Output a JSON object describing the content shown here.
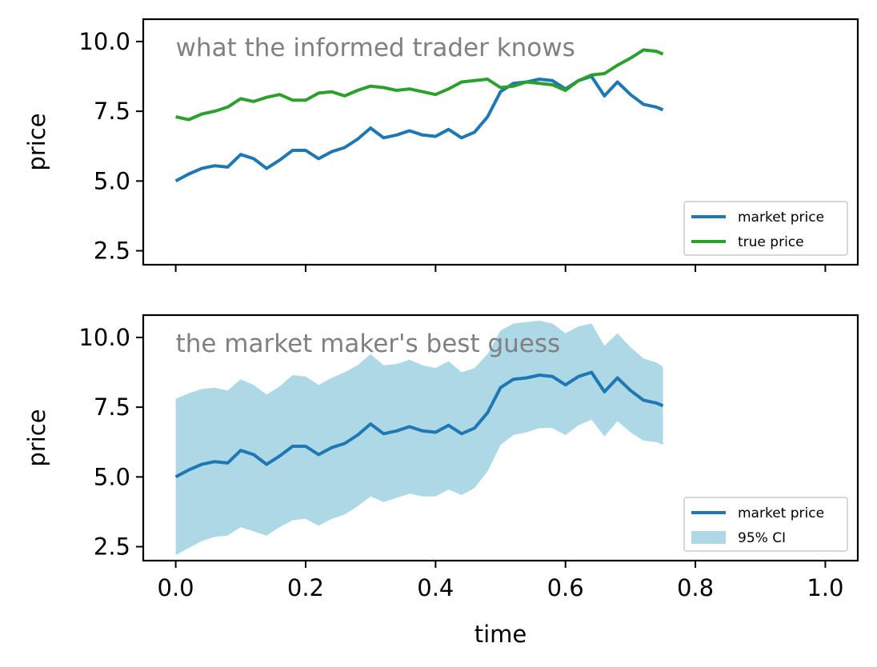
{
  "chart_data": [
    {
      "type": "line",
      "title": "what the informed trader knows",
      "xlabel": "",
      "ylabel": "price",
      "xlim": [
        -0.05,
        1.05
      ],
      "ylim": [
        2.0,
        10.8
      ],
      "x_ticks": [
        "0.0",
        "0.2",
        "0.4",
        "0.6",
        "0.8",
        "1.0"
      ],
      "x_tick_labels_visible": false,
      "y_ticks": [
        "2.5",
        "5.0",
        "7.5",
        "10.0"
      ],
      "legend_position": "lower right",
      "grid": false,
      "series": [
        {
          "name": "market price",
          "color": "#1f77b4",
          "x": [
            0.0,
            0.02,
            0.04,
            0.06,
            0.08,
            0.1,
            0.12,
            0.14,
            0.16,
            0.18,
            0.2,
            0.22,
            0.24,
            0.26,
            0.28,
            0.3,
            0.32,
            0.34,
            0.36,
            0.38,
            0.4,
            0.42,
            0.44,
            0.46,
            0.48,
            0.5,
            0.52,
            0.54,
            0.56,
            0.58,
            0.6,
            0.62,
            0.64,
            0.66,
            0.68,
            0.7,
            0.72,
            0.74,
            0.75
          ],
          "y": [
            5.0,
            5.25,
            5.45,
            5.55,
            5.5,
            5.95,
            5.8,
            5.45,
            5.75,
            6.1,
            6.1,
            5.8,
            6.05,
            6.2,
            6.5,
            6.9,
            6.55,
            6.65,
            6.8,
            6.65,
            6.6,
            6.85,
            6.55,
            6.75,
            7.3,
            8.2,
            8.5,
            8.55,
            8.65,
            8.6,
            8.3,
            8.6,
            8.75,
            8.05,
            8.55,
            8.1,
            7.75,
            7.65,
            7.55
          ]
        },
        {
          "name": "true price",
          "color": "#2ca02c",
          "x": [
            0.0,
            0.02,
            0.04,
            0.06,
            0.08,
            0.1,
            0.12,
            0.14,
            0.16,
            0.18,
            0.2,
            0.22,
            0.24,
            0.26,
            0.28,
            0.3,
            0.32,
            0.34,
            0.36,
            0.38,
            0.4,
            0.42,
            0.44,
            0.46,
            0.48,
            0.5,
            0.52,
            0.54,
            0.56,
            0.58,
            0.6,
            0.62,
            0.64,
            0.66,
            0.68,
            0.7,
            0.72,
            0.74,
            0.75
          ],
          "y": [
            7.3,
            7.2,
            7.4,
            7.5,
            7.65,
            7.95,
            7.85,
            8.0,
            8.1,
            7.9,
            7.9,
            8.15,
            8.2,
            8.05,
            8.25,
            8.4,
            8.35,
            8.25,
            8.3,
            8.2,
            8.1,
            8.3,
            8.55,
            8.6,
            8.65,
            8.35,
            8.4,
            8.55,
            8.5,
            8.45,
            8.25,
            8.6,
            8.8,
            8.85,
            9.15,
            9.4,
            9.7,
            9.65,
            9.55
          ]
        }
      ]
    },
    {
      "type": "area",
      "title": "the market maker's best guess",
      "xlabel": "time",
      "ylabel": "price",
      "xlim": [
        -0.05,
        1.05
      ],
      "ylim": [
        2.0,
        10.8
      ],
      "x_ticks": [
        "0.0",
        "0.2",
        "0.4",
        "0.6",
        "0.8",
        "1.0"
      ],
      "y_ticks": [
        "2.5",
        "5.0",
        "7.5",
        "10.0"
      ],
      "legend_position": "lower right",
      "grid": false,
      "series": [
        {
          "name": "market price",
          "color": "#1f77b4",
          "x": [
            0.0,
            0.02,
            0.04,
            0.06,
            0.08,
            0.1,
            0.12,
            0.14,
            0.16,
            0.18,
            0.2,
            0.22,
            0.24,
            0.26,
            0.28,
            0.3,
            0.32,
            0.34,
            0.36,
            0.38,
            0.4,
            0.42,
            0.44,
            0.46,
            0.48,
            0.5,
            0.52,
            0.54,
            0.56,
            0.58,
            0.6,
            0.62,
            0.64,
            0.66,
            0.68,
            0.7,
            0.72,
            0.74,
            0.75
          ],
          "y": [
            5.0,
            5.25,
            5.45,
            5.55,
            5.5,
            5.95,
            5.8,
            5.45,
            5.75,
            6.1,
            6.1,
            5.8,
            6.05,
            6.2,
            6.5,
            6.9,
            6.55,
            6.65,
            6.8,
            6.65,
            6.6,
            6.85,
            6.55,
            6.75,
            7.3,
            8.2,
            8.5,
            8.55,
            8.65,
            8.6,
            8.3,
            8.6,
            8.75,
            8.05,
            8.55,
            8.1,
            7.75,
            7.65,
            7.55
          ]
        },
        {
          "name": "95% CI",
          "color": "#add8e6",
          "x": [
            0.0,
            0.02,
            0.04,
            0.06,
            0.08,
            0.1,
            0.12,
            0.14,
            0.16,
            0.18,
            0.2,
            0.22,
            0.24,
            0.26,
            0.28,
            0.3,
            0.32,
            0.34,
            0.36,
            0.38,
            0.4,
            0.42,
            0.44,
            0.46,
            0.48,
            0.5,
            0.52,
            0.54,
            0.56,
            0.58,
            0.6,
            0.62,
            0.64,
            0.66,
            0.68,
            0.7,
            0.72,
            0.74,
            0.75
          ],
          "lower": [
            2.2,
            2.45,
            2.7,
            2.85,
            2.9,
            3.2,
            3.05,
            2.9,
            3.2,
            3.45,
            3.5,
            3.25,
            3.5,
            3.65,
            3.95,
            4.3,
            4.1,
            4.25,
            4.4,
            4.3,
            4.3,
            4.55,
            4.35,
            4.6,
            5.2,
            6.15,
            6.5,
            6.6,
            6.75,
            6.75,
            6.5,
            6.85,
            7.05,
            6.45,
            7.0,
            6.6,
            6.3,
            6.25,
            6.15
          ],
          "upper": [
            7.8,
            8.0,
            8.15,
            8.2,
            8.1,
            8.5,
            8.3,
            7.95,
            8.25,
            8.65,
            8.6,
            8.3,
            8.55,
            8.75,
            9.0,
            9.4,
            9.0,
            9.05,
            9.2,
            9.0,
            8.9,
            9.15,
            8.75,
            8.9,
            9.4,
            10.25,
            10.5,
            10.55,
            10.6,
            10.5,
            10.15,
            10.4,
            10.5,
            9.7,
            10.15,
            9.65,
            9.25,
            9.1,
            8.95
          ]
        }
      ]
    }
  ]
}
